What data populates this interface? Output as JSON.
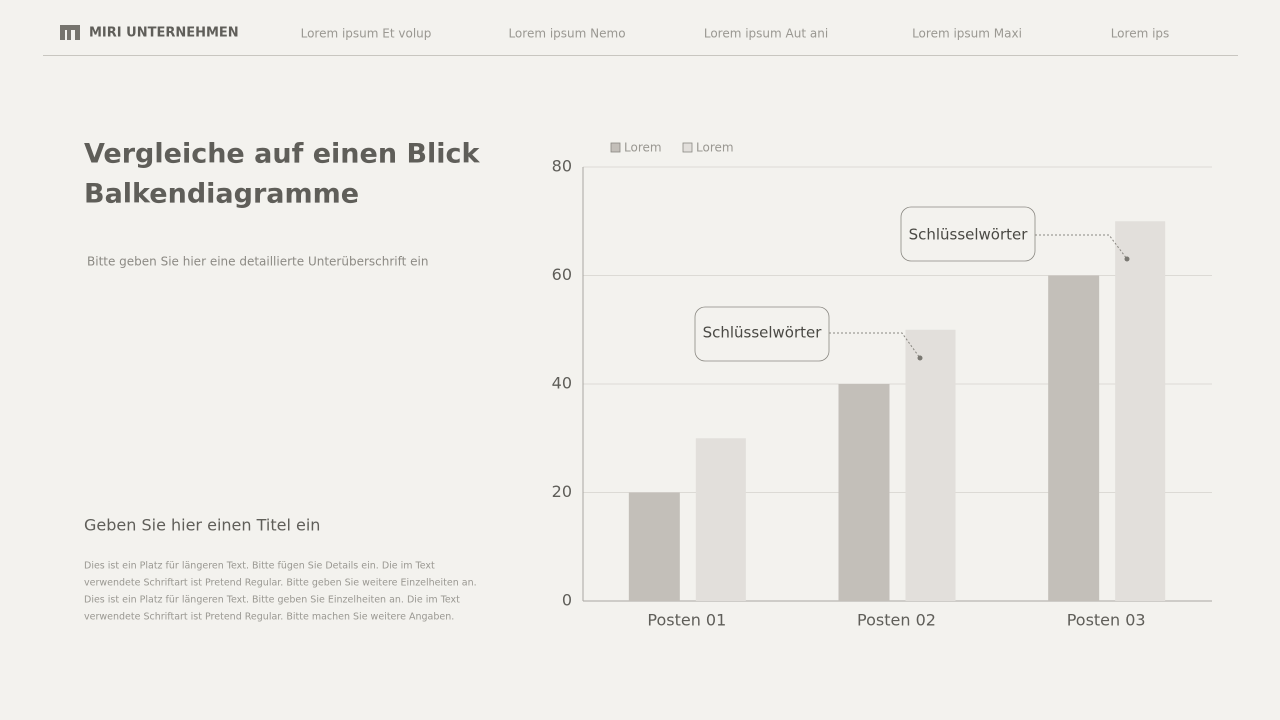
{
  "header": {
    "logo": "MIRI UNTERNEHMEN",
    "nav": [
      "Lorem ipsum Et volup",
      "Lorem ipsum Nemo",
      "Lorem ipsum Aut ani",
      "Lorem ipsum Maxi",
      "Lorem ips"
    ]
  },
  "left": {
    "title": [
      "Vergleiche auf einen Blick",
      "Balkendiagramme"
    ],
    "subtitle": "Bitte geben Sie hier eine detaillierte Unterüberschrift ein",
    "section_title": "Geben Sie hier einen Titel ein",
    "body": [
      "Dies ist ein Platz für längeren Text. Bitte fügen Sie Details ein. Die im Text",
      "verwendete Schriftart ist Pretend Regular. Bitte geben Sie weitere Einzelheiten an.",
      "Dies ist ein Platz für längeren Text. Bitte geben Sie Einzelheiten an. Die im Text",
      "verwendete Schriftart ist Pretend Regular. Bitte machen Sie weitere Angaben."
    ]
  },
  "chart_data": {
    "type": "bar",
    "categories": [
      "Posten 01",
      "Posten 02",
      "Posten 03"
    ],
    "series": [
      {
        "name": "Lorem",
        "color": "#c3bfb9",
        "values": [
          20,
          40,
          60
        ]
      },
      {
        "name": "Lorem",
        "color": "#e2dfdb",
        "values": [
          30,
          50,
          70
        ]
      }
    ],
    "ylim": [
      0,
      80
    ],
    "yticks": [
      0,
      20,
      40,
      60,
      80
    ],
    "grid": true,
    "legend": "top-left",
    "annotations": [
      "Schlüsselwörter",
      "Schlüsselwörter"
    ]
  }
}
